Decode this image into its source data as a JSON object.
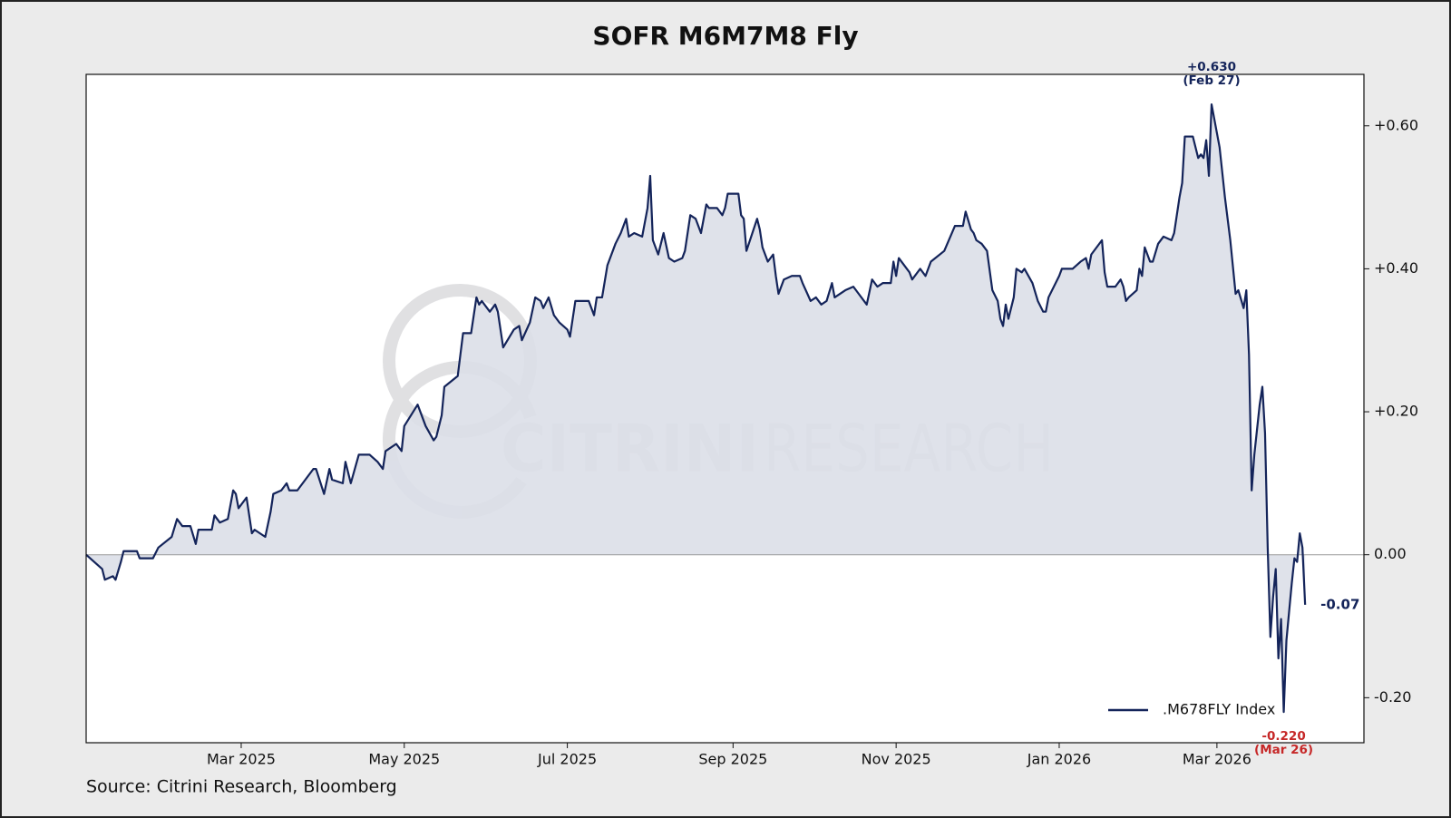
{
  "chart_data": {
    "type": "line",
    "title": "SOFR M6M7M8 Fly",
    "source": "Source: Citrini Research, Bloomberg",
    "watermark": [
      "CITRINI",
      "RESEARCH"
    ],
    "x": [
      "2025-01-02",
      "2025-01-05",
      "2025-01-08",
      "2025-01-09",
      "2025-01-12",
      "2025-01-13",
      "2025-01-15",
      "2025-01-16",
      "2025-01-21",
      "2025-01-22",
      "2025-01-27",
      "2025-01-29",
      "2025-02-03",
      "2025-02-05",
      "2025-02-07",
      "2025-02-10",
      "2025-02-12",
      "2025-02-13",
      "2025-02-18",
      "2025-02-19",
      "2025-02-21",
      "2025-02-24",
      "2025-02-26",
      "2025-02-27",
      "2025-02-28",
      "2025-03-03",
      "2025-03-05",
      "2025-03-06",
      "2025-03-10",
      "2025-03-12",
      "2025-03-13",
      "2025-03-16",
      "2025-03-18",
      "2025-03-19",
      "2025-03-22",
      "2025-03-28",
      "2025-03-29",
      "2025-04-01",
      "2025-04-03",
      "2025-04-04",
      "2025-04-08",
      "2025-04-09",
      "2025-04-11",
      "2025-04-14",
      "2025-04-18",
      "2025-04-21",
      "2025-04-23",
      "2025-04-24",
      "2025-04-28",
      "2025-04-30",
      "2025-05-01",
      "2025-05-06",
      "2025-05-08",
      "2025-05-09",
      "2025-05-12",
      "2025-05-13",
      "2025-05-15",
      "2025-05-16",
      "2025-05-21",
      "2025-05-23",
      "2025-05-26",
      "2025-05-28",
      "2025-05-29",
      "2025-05-30",
      "2025-06-02",
      "2025-06-04",
      "2025-06-05",
      "2025-06-07",
      "2025-06-11",
      "2025-06-13",
      "2025-06-14",
      "2025-06-17",
      "2025-06-19",
      "2025-06-21",
      "2025-06-22",
      "2025-06-24",
      "2025-06-26",
      "2025-06-28",
      "2025-07-01",
      "2025-07-02",
      "2025-07-04",
      "2025-07-09",
      "2025-07-11",
      "2025-07-12",
      "2025-07-14",
      "2025-07-16",
      "2025-07-19",
      "2025-07-21",
      "2025-07-23",
      "2025-07-24",
      "2025-07-26",
      "2025-07-29",
      "2025-07-31",
      "2025-08-01",
      "2025-08-02",
      "2025-08-04",
      "2025-08-06",
      "2025-08-08",
      "2025-08-10",
      "2025-08-13",
      "2025-08-14",
      "2025-08-16",
      "2025-08-18",
      "2025-08-20",
      "2025-08-22",
      "2025-08-23",
      "2025-08-26",
      "2025-08-28",
      "2025-08-29",
      "2025-08-30",
      "2025-09-03",
      "2025-09-04",
      "2025-09-05",
      "2025-09-06",
      "2025-09-10",
      "2025-09-11",
      "2025-09-12",
      "2025-09-14",
      "2025-09-16",
      "2025-09-17",
      "2025-09-18",
      "2025-09-20",
      "2025-09-23",
      "2025-09-26",
      "2025-09-27",
      "2025-09-30",
      "2025-10-02",
      "2025-10-04",
      "2025-10-06",
      "2025-10-08",
      "2025-10-09",
      "2025-10-13",
      "2025-10-16",
      "2025-10-18",
      "2025-10-21",
      "2025-10-23",
      "2025-10-25",
      "2025-10-27",
      "2025-10-30",
      "2025-10-31",
      "2025-11-01",
      "2025-11-02",
      "2025-11-06",
      "2025-11-07",
      "2025-11-10",
      "2025-11-12",
      "2025-11-14",
      "2025-11-19",
      "2025-11-23",
      "2025-11-26",
      "2025-11-27",
      "2025-11-29",
      "2025-11-30",
      "2025-12-01",
      "2025-12-03",
      "2025-12-05",
      "2025-12-07",
      "2025-12-09",
      "2025-12-10",
      "2025-12-11",
      "2025-12-12",
      "2025-12-13",
      "2025-12-15",
      "2025-12-16",
      "2025-12-18",
      "2025-12-19",
      "2025-12-22",
      "2025-12-24",
      "2025-12-26",
      "2025-12-27",
      "2025-12-28",
      "2026-01-01",
      "2026-01-02",
      "2026-01-06",
      "2026-01-09",
      "2026-01-11",
      "2026-01-12",
      "2026-01-13",
      "2026-01-17",
      "2026-01-18",
      "2026-01-19",
      "2026-01-22",
      "2026-01-24",
      "2026-01-25",
      "2026-01-26",
      "2026-01-27",
      "2026-01-30",
      "2026-01-31",
      "2026-02-01",
      "2026-02-02",
      "2026-02-04",
      "2026-02-05",
      "2026-02-07",
      "2026-02-09",
      "2026-02-12",
      "2026-02-13",
      "2026-02-15",
      "2026-02-16",
      "2026-02-17",
      "2026-02-20",
      "2026-02-22",
      "2026-02-23",
      "2026-02-24",
      "2026-02-25",
      "2026-02-26",
      "2026-02-27",
      "2026-03-02",
      "2026-03-04",
      "2026-03-06",
      "2026-03-08",
      "2026-03-09",
      "2026-03-11",
      "2026-03-12",
      "2026-03-13",
      "2026-03-14",
      "2026-03-15",
      "2026-03-17",
      "2026-03-18",
      "2026-03-19",
      "2026-03-20",
      "2026-03-21",
      "2026-03-22",
      "2026-03-23",
      "2026-03-24",
      "2026-03-25",
      "2026-03-26",
      "2026-03-27",
      "2026-03-28",
      "2026-03-29",
      "2026-03-30",
      "2026-03-31",
      "2026-04-01",
      "2026-04-02",
      "2026-04-03"
    ],
    "series": [
      {
        "name": ".M678FLY Index",
        "color": "#14245a",
        "fill": "#dcdfe8",
        "values": [
          0,
          -0.01,
          -0.02,
          -0.035,
          -0.03,
          -0.035,
          -0.01,
          0.005,
          0.005,
          -0.005,
          -0.005,
          0.01,
          0.025,
          0.05,
          0.04,
          0.04,
          0.015,
          0.035,
          0.035,
          0.055,
          0.045,
          0.05,
          0.09,
          0.085,
          0.065,
          0.08,
          0.03,
          0.035,
          0.025,
          0.06,
          0.085,
          0.09,
          0.1,
          0.09,
          0.09,
          0.12,
          0.12,
          0.085,
          0.12,
          0.105,
          0.1,
          0.13,
          0.1,
          0.14,
          0.14,
          0.13,
          0.12,
          0.145,
          0.155,
          0.145,
          0.18,
          0.21,
          0.19,
          0.18,
          0.16,
          0.165,
          0.195,
          0.235,
          0.25,
          0.31,
          0.31,
          0.36,
          0.35,
          0.355,
          0.34,
          0.35,
          0.34,
          0.29,
          0.315,
          0.32,
          0.3,
          0.325,
          0.36,
          0.355,
          0.345,
          0.36,
          0.335,
          0.325,
          0.315,
          0.305,
          0.355,
          0.355,
          0.335,
          0.36,
          0.36,
          0.405,
          0.435,
          0.45,
          0.47,
          0.445,
          0.45,
          0.445,
          0.485,
          0.53,
          0.44,
          0.42,
          0.45,
          0.415,
          0.41,
          0.415,
          0.425,
          0.475,
          0.47,
          0.45,
          0.49,
          0.485,
          0.485,
          0.475,
          0.485,
          0.505,
          0.505,
          0.475,
          0.47,
          0.425,
          0.47,
          0.455,
          0.43,
          0.41,
          0.42,
          0.39,
          0.365,
          0.385,
          0.39,
          0.39,
          0.38,
          0.355,
          0.36,
          0.35,
          0.355,
          0.38,
          0.36,
          0.37,
          0.375,
          0.365,
          0.35,
          0.385,
          0.375,
          0.38,
          0.38,
          0.41,
          0.39,
          0.415,
          0.395,
          0.385,
          0.4,
          0.39,
          0.41,
          0.425,
          0.46,
          0.46,
          0.48,
          0.455,
          0.45,
          0.44,
          0.435,
          0.425,
          0.37,
          0.355,
          0.33,
          0.32,
          0.35,
          0.33,
          0.36,
          0.4,
          0.395,
          0.4,
          0.38,
          0.355,
          0.34,
          0.34,
          0.36,
          0.39,
          0.4,
          0.4,
          0.41,
          0.415,
          0.4,
          0.42,
          0.44,
          0.395,
          0.375,
          0.375,
          0.385,
          0.375,
          0.355,
          0.36,
          0.37,
          0.4,
          0.39,
          0.43,
          0.41,
          0.41,
          0.435,
          0.445,
          0.44,
          0.45,
          0.5,
          0.52,
          0.585,
          0.585,
          0.555,
          0.56,
          0.555,
          0.58,
          0.53,
          0.63,
          0.57,
          0.5,
          0.44,
          0.365,
          0.37,
          0.345,
          0.37,
          0.28,
          0.09,
          0.14,
          0.21,
          0.235,
          0.17,
          0.01,
          -0.115,
          -0.06,
          -0.02,
          -0.145,
          -0.09,
          -0.22,
          -0.12,
          -0.08,
          -0.04,
          -0.005,
          -0.01,
          0.03,
          0.01,
          -0.07
        ]
      }
    ],
    "annotations": [
      {
        "x": "2026-02-27",
        "value_label": "+0.630",
        "date_label": "(Feb 27)",
        "color": "#14245a"
      },
      {
        "x": "2026-03-26",
        "value_label": "-0.220",
        "date_label": "(Mar 26)",
        "color": "#c62828"
      },
      {
        "x": "2026-04-03",
        "value_label": "-0.07",
        "color": "#14245a"
      }
    ],
    "xlim": [
      "2025-01-02",
      "2026-04-25"
    ],
    "xticks": [
      {
        "value": "2025-03-01",
        "label": "Mar 2025"
      },
      {
        "value": "2025-05-01",
        "label": "May 2025"
      },
      {
        "value": "2025-07-01",
        "label": "Jul 2025"
      },
      {
        "value": "2025-09-01",
        "label": "Sep 2025"
      },
      {
        "value": "2025-11-01",
        "label": "Nov 2025"
      },
      {
        "value": "2026-01-01",
        "label": "Jan 2026"
      },
      {
        "value": "2026-03-01",
        "label": "Mar 2026"
      }
    ],
    "ylim": [
      -0.263,
      0.672
    ],
    "yticks": [
      {
        "value": -0.2,
        "label": "-0.20"
      },
      {
        "value": 0,
        "label": "0.00"
      },
      {
        "value": 0.2,
        "label": "+0.20"
      },
      {
        "value": 0.4,
        "label": "+0.40"
      },
      {
        "value": 0.6,
        "label": "+0.60"
      }
    ],
    "y_axis_side": "right",
    "hline": 0,
    "grid": false,
    "legend": "lower right"
  }
}
